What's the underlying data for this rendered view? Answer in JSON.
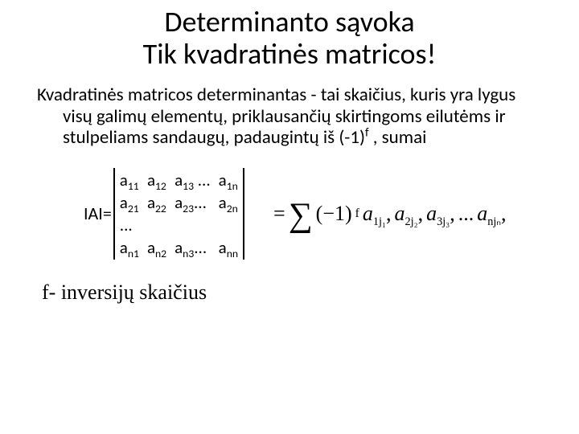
{
  "title_line1": "Determinanto sąvoka",
  "title_line2": "Tik kvadratinės matricos!",
  "paragraph": "Kvadratinės matricos determinantas - tai skaičius, kuris yra lygus visų galimų elementų, priklausančių skirtingoms eilutėms ir stulpeliams sandaugų, padaugintų iš (-1)",
  "paragraph_sup": "f",
  "paragraph_tail": " , sumai",
  "det_label": "IAI=",
  "matrix": {
    "r1": [
      "a",
      "a",
      "a",
      "a"
    ],
    "r1sub": [
      "11",
      "12",
      "13",
      "1n"
    ],
    "r1dots": " ...",
    "r2": [
      "a",
      "a",
      "a",
      "a"
    ],
    "r2sub": [
      "21",
      "22",
      "23",
      "2n"
    ],
    "r2dots": "...",
    "r3dots": "...",
    "r4": [
      "a",
      "a",
      "a",
      "a"
    ],
    "r4sub": [
      "n1",
      "n2",
      "n3",
      "nn"
    ],
    "r4dots": "..."
  },
  "formula": {
    "eq": "=",
    "neg1": "(−1)",
    "exp": "f",
    "terms": [
      "a",
      "a",
      "a",
      "a"
    ],
    "termsubs": [
      "1j₁",
      "2j₂",
      "3j₃",
      "njₙ"
    ],
    "dots": "..."
  },
  "footnote": "f- inversijų skaičius",
  "colors": {
    "text": "#000000",
    "bg": "#ffffff"
  },
  "fontsizes": {
    "title": 36,
    "body": 23,
    "matrix": 21,
    "formula": 26,
    "footnote": 26
  }
}
